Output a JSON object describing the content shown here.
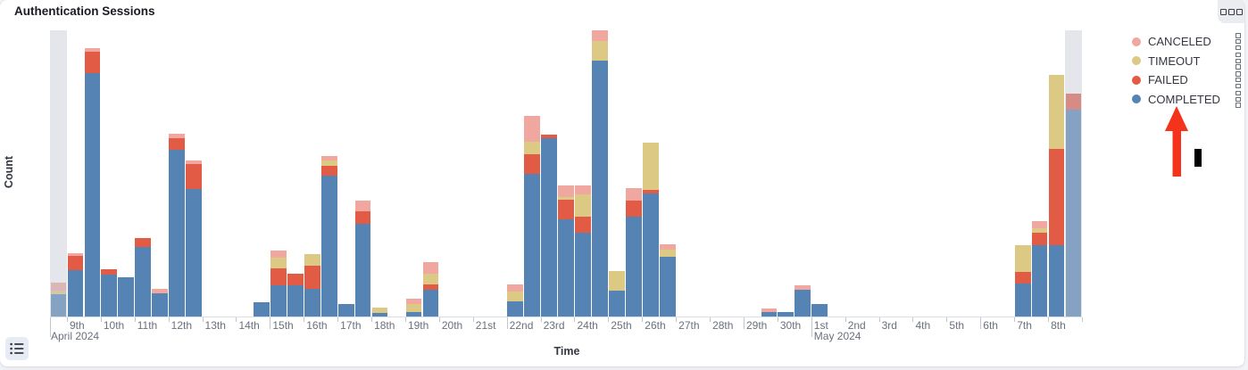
{
  "panel": {
    "title": "Authentication Sessions",
    "menu_icon": "boxes-horizontal-icon",
    "legend_toggle_icon": "list-icon"
  },
  "legend": {
    "position": "right",
    "item_action_icon": "boxes-vertical-icon",
    "items": [
      {
        "label": "CANCELED",
        "color": "#f0a79f"
      },
      {
        "label": "TIMEOUT",
        "color": "#dcc983"
      },
      {
        "label": "FAILED",
        "color": "#e25b44"
      },
      {
        "label": "COMPLETED",
        "color": "#5584b4"
      }
    ]
  },
  "axes": {
    "x_title": "Time",
    "y_title": "Count",
    "y_tick_labels_visible": false
  },
  "annotations": {
    "arrow": {
      "shape": "up-arrow",
      "color": "#f4331a",
      "points_at": "COMPLETED legend item"
    },
    "cursor_bar": {
      "shape": "vertical-bar",
      "color": "#000000"
    }
  },
  "chart_data": {
    "type": "bar",
    "stacked": true,
    "title": "Authentication Sessions",
    "xlabel": "Time",
    "ylabel": "Count",
    "legend_position": "right",
    "grid": false,
    "bucket_interval": "12h",
    "buckets_per_day": 2,
    "ylim": [
      0,
      330
    ],
    "categories_days": [
      "9th",
      "10th",
      "11th",
      "12th",
      "13th",
      "14th",
      "15th",
      "16th",
      "17th",
      "18th",
      "19th",
      "20th",
      "21st",
      "22nd",
      "23rd",
      "24th",
      "25th",
      "26th",
      "27th",
      "28th",
      "29th",
      "30th",
      "1st",
      "2nd",
      "3rd",
      "4th",
      "5th",
      "6th",
      "7th",
      "8th"
    ],
    "month_labels": [
      {
        "text": "April 2024",
        "day_index": 0
      },
      {
        "text": "May 2024",
        "day_index": 22
      }
    ],
    "week_tick_day_indices": [
      6,
      13,
      20,
      27
    ],
    "month_tick_day_indices": [
      22
    ],
    "partial_bucket_indices": [
      0,
      60
    ],
    "series": [
      {
        "name": "COMPLETED",
        "color": "#5584b4",
        "values": [
          25,
          52,
          273,
          47,
          44,
          78,
          26,
          187,
          143,
          0,
          0,
          0,
          16,
          35,
          35,
          31,
          158,
          14,
          104,
          4,
          0,
          5,
          30,
          0,
          0,
          0,
          0,
          17,
          160,
          200,
          109,
          94,
          287,
          29,
          112,
          138,
          67,
          0,
          0,
          0,
          0,
          0,
          5,
          5,
          30,
          14,
          0,
          0,
          0,
          0,
          0,
          0,
          0,
          0,
          0,
          0,
          0,
          37,
          80,
          80,
          232
        ]
      },
      {
        "name": "FAILED",
        "color": "#e25b44",
        "values": [
          0,
          16,
          24,
          6,
          0,
          10,
          0,
          13,
          28,
          0,
          0,
          0,
          0,
          19,
          13,
          26,
          11,
          0,
          14,
          0,
          0,
          0,
          6,
          0,
          0,
          0,
          0,
          0,
          22,
          4,
          22,
          18,
          0,
          0,
          18,
          4,
          0,
          0,
          0,
          0,
          0,
          0,
          0,
          0,
          0,
          0,
          0,
          0,
          0,
          0,
          0,
          0,
          0,
          0,
          0,
          0,
          0,
          13,
          14,
          108,
          18
        ]
      },
      {
        "name": "TIMEOUT",
        "color": "#dcc983",
        "values": [
          4,
          0,
          0,
          0,
          0,
          0,
          0,
          0,
          0,
          0,
          0,
          0,
          0,
          12,
          0,
          13,
          6,
          0,
          0,
          6,
          0,
          9,
          12,
          0,
          0,
          0,
          0,
          11,
          14,
          0,
          3,
          25,
          22,
          22,
          0,
          53,
          8,
          0,
          0,
          0,
          0,
          0,
          0,
          0,
          0,
          0,
          0,
          0,
          0,
          0,
          0,
          0,
          0,
          0,
          0,
          0,
          0,
          30,
          5,
          83,
          0
        ]
      },
      {
        "name": "CANCELED",
        "color": "#f0a79f",
        "values": [
          9,
          3,
          4,
          0,
          0,
          0,
          5,
          5,
          4,
          0,
          0,
          0,
          0,
          8,
          0,
          0,
          5,
          0,
          12,
          0,
          0,
          6,
          13,
          0,
          0,
          0,
          0,
          8,
          29,
          0,
          13,
          10,
          12,
          0,
          14,
          0,
          6,
          0,
          0,
          0,
          0,
          0,
          4,
          0,
          5,
          0,
          0,
          0,
          0,
          0,
          0,
          0,
          0,
          0,
          0,
          0,
          0,
          0,
          8,
          0,
          0
        ]
      }
    ]
  }
}
